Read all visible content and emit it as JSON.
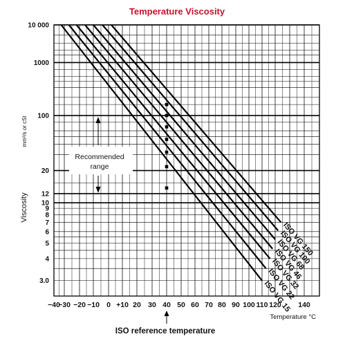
{
  "chart_data": {
    "type": "line",
    "title": "Temperature Viscosity",
    "xlabel": "Temperature °C",
    "ylabel": "Viscosity",
    "ylabel_units": "mm²/s or cSt",
    "y_scale": "log-log (Walther)",
    "xlim": [
      -40,
      150
    ],
    "ylim": [
      2.5,
      10000
    ],
    "x_ticks": [
      "−40",
      "−30",
      "−20",
      "−10",
      "0",
      "+10",
      "20",
      "30",
      "40",
      "50",
      "60",
      "70",
      "80",
      "90",
      "100",
      "110",
      "120",
      "140"
    ],
    "x_tick_values": [
      -40,
      -30,
      -20,
      -10,
      0,
      10,
      20,
      30,
      40,
      50,
      60,
      70,
      80,
      90,
      100,
      110,
      120,
      140
    ],
    "y_ticks": [
      "3.0",
      "4",
      "5",
      "6",
      "7",
      "8",
      "9",
      "10",
      "12",
      "20",
      "100",
      "1000",
      "10 000"
    ],
    "y_tick_values": [
      3,
      4,
      5,
      6,
      7,
      8,
      9,
      10,
      12,
      20,
      100,
      1000,
      10000
    ],
    "grid": true,
    "series": [
      {
        "name": "ISO VG 15",
        "x": [
          -33,
          40,
          110
        ],
        "y": [
          10000,
          13.5,
          3.0
        ]
      },
      {
        "name": "ISO VG 22",
        "x": [
          -27,
          40,
          113
        ],
        "y": [
          10000,
          22,
          3.5
        ]
      },
      {
        "name": "ISO VG 32",
        "x": [
          -22,
          40,
          116
        ],
        "y": [
          10000,
          32,
          4.0
        ]
      },
      {
        "name": "ISO VG 46",
        "x": [
          -16,
          40,
          118
        ],
        "y": [
          10000,
          46,
          4.6
        ]
      },
      {
        "name": "ISO VG 68",
        "x": [
          -10,
          40,
          120
        ],
        "y": [
          10000,
          68,
          5.3
        ]
      },
      {
        "name": "ISO VG 100",
        "x": [
          -4,
          40,
          122
        ],
        "y": [
          10000,
          100,
          6.1
        ]
      },
      {
        "name": "ISO VG 150",
        "x": [
          2,
          40,
          124
        ],
        "y": [
          10000,
          150,
          7.0
        ]
      }
    ],
    "reference_points": {
      "x": 40,
      "y": [
        13.5,
        22,
        32,
        46,
        68,
        100,
        150
      ]
    },
    "annotations": [
      {
        "text": "Recommended range",
        "lines": [
          "Recommended",
          "range"
        ],
        "from": 12,
        "to": 100
      },
      {
        "text": "ISO reference temperature",
        "x": 40
      }
    ]
  }
}
